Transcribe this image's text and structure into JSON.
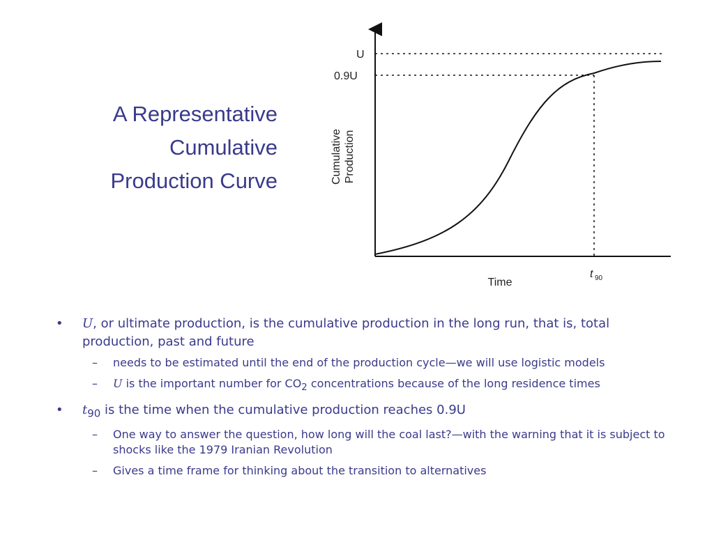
{
  "slide": {
    "title": [
      "A Representative",
      "Cumulative",
      "Production Curve"
    ],
    "diagram": {
      "u_label": "U",
      "u90_label": "0.9U",
      "y_axis_label": [
        "Cumulative",
        "Production"
      ],
      "x_axis_label": "Time",
      "t_label": "t",
      "t_label_sub": "90"
    },
    "bullets": [
      {
        "symbol": "U",
        "text": ", or ultimate production, is the cumulative production in the long run, that is, total production, past and future",
        "subs": [
          {
            "text": "needs to be estimated until the end of the production cycle—we will use logistic models"
          },
          {
            "symbol": "U",
            "text_before": " is the important number for CO",
            "sub": "2",
            "text_after": " concentrations because of the long residence times"
          }
        ]
      },
      {
        "symbol": "t",
        "symbol_sub": "90",
        "text": " is the time when the cumulative production reaches 0.9U",
        "subs": [
          {
            "text": "One way to answer the question, how long will the coal last?—with the warning that it is subject to shocks like the 1979 Iranian Revolution"
          },
          {
            "text": "Gives a time frame for thinking about the transition to alternatives"
          }
        ]
      }
    ]
  }
}
